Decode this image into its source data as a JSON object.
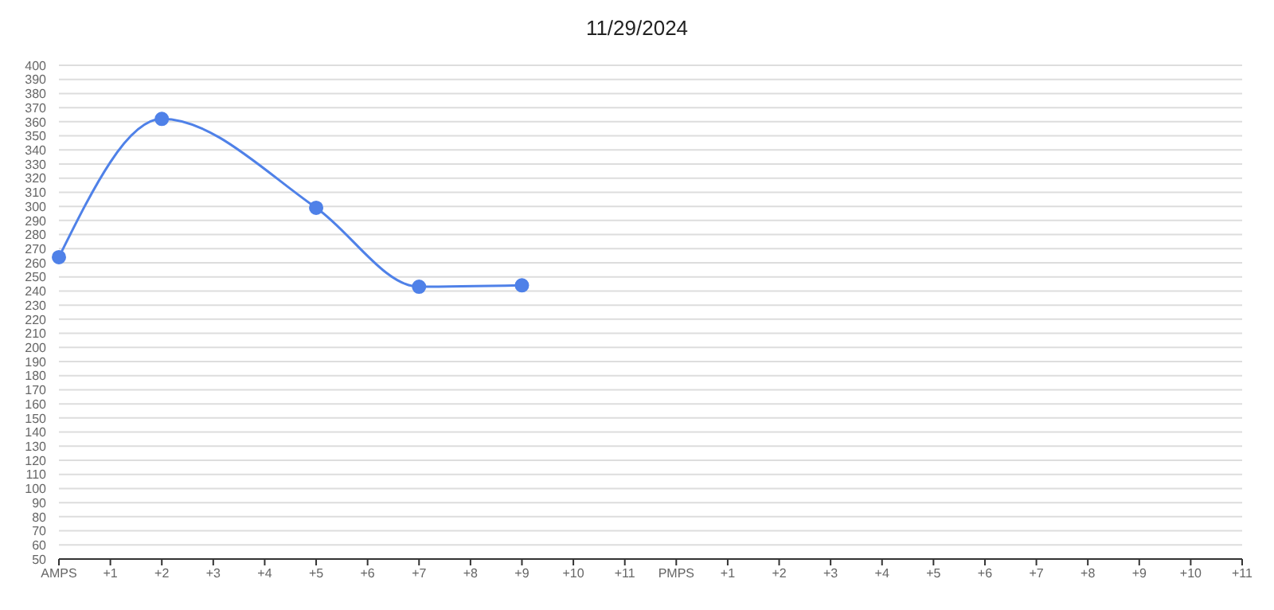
{
  "chart_data": {
    "type": "line",
    "title": "11/29/2024",
    "categories": [
      "AMPS",
      "+1",
      "+2",
      "+3",
      "+4",
      "+5",
      "+6",
      "+7",
      "+8",
      "+9",
      "+10",
      "+11",
      "PMPS",
      "+1",
      "+2",
      "+3",
      "+4",
      "+5",
      "+6",
      "+7",
      "+8",
      "+9",
      "+10",
      "+11"
    ],
    "series": [
      {
        "color": "#4f81e8",
        "values": [
          264,
          null,
          362,
          null,
          null,
          299,
          null,
          243,
          null,
          244,
          null,
          null,
          null,
          null,
          null,
          null,
          null,
          null,
          null,
          null,
          null,
          null,
          null,
          null
        ]
      }
    ],
    "ylim": [
      50,
      400
    ],
    "yticks": [
      50,
      60,
      70,
      80,
      90,
      100,
      110,
      120,
      130,
      140,
      150,
      160,
      170,
      180,
      190,
      200,
      210,
      220,
      230,
      240,
      250,
      260,
      270,
      280,
      290,
      300,
      310,
      320,
      330,
      340,
      350,
      360,
      370,
      380,
      390,
      400
    ],
    "grid": "y",
    "marker": "circle",
    "line_style": "solid"
  }
}
